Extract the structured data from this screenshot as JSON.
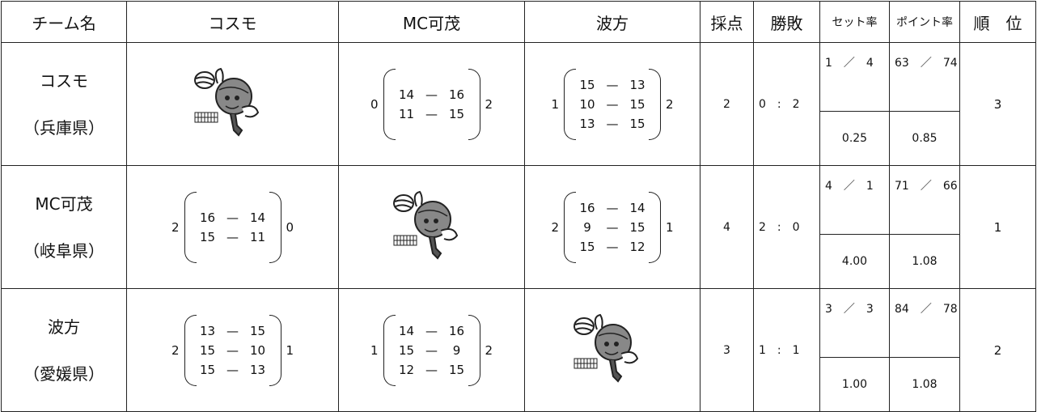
{
  "header": [
    "チーム名",
    "コスモ",
    "MC可茂",
    "波方",
    "採点",
    "勝敗",
    "セット率",
    "ポイント率",
    "順　位"
  ],
  "rows": [
    {
      "team": "コスモ",
      "prefecture": "（兵庫県）",
      "matches": [
        null,
        {
          "sets_won": 0,
          "sets": [
            [
              14,
              16
            ],
            [
              11,
              15
            ]
          ],
          "sets_lost": 2
        },
        {
          "sets_won": 1,
          "sets": [
            [
              15,
              13
            ],
            [
              10,
              15
            ],
            [
              13,
              15
            ]
          ],
          "sets_lost": 2
        }
      ],
      "points": 2,
      "wins": 0,
      "losses": 2,
      "sets_for": 1,
      "sets_against": 4,
      "points_for": 63,
      "points_against": 74,
      "set_rate": "0.25",
      "point_rate": "0.85",
      "rank": 3
    },
    {
      "team": "MC可茂",
      "prefecture": "（岐阜県）",
      "matches": [
        {
          "sets_won": 2,
          "sets": [
            [
              16,
              14
            ],
            [
              15,
              11
            ]
          ],
          "sets_lost": 0
        },
        null,
        {
          "sets_won": 2,
          "sets": [
            [
              16,
              14
            ],
            [
              9,
              15
            ],
            [
              15,
              12
            ]
          ],
          "sets_lost": 1
        }
      ],
      "points": 4,
      "wins": 2,
      "losses": 0,
      "sets_for": 4,
      "sets_against": 1,
      "points_for": 71,
      "points_against": 66,
      "set_rate": "4.00",
      "point_rate": "1.08",
      "rank": 1
    },
    {
      "team": "波方",
      "prefecture": "（愛媛県）",
      "matches": [
        {
          "sets_won": 2,
          "sets": [
            [
              13,
              15
            ],
            [
              15,
              10
            ],
            [
              15,
              13
            ]
          ],
          "sets_lost": 1
        },
        {
          "sets_won": 1,
          "sets": [
            [
              14,
              16
            ],
            [
              15,
              9
            ],
            [
              12,
              15
            ]
          ],
          "sets_lost": 2
        },
        null
      ],
      "points": 3,
      "wins": 1,
      "losses": 1,
      "sets_for": 3,
      "sets_against": 3,
      "points_for": 84,
      "points_against": 78,
      "set_rate": "1.00",
      "point_rate": "1.08",
      "rank": 2
    }
  ]
}
